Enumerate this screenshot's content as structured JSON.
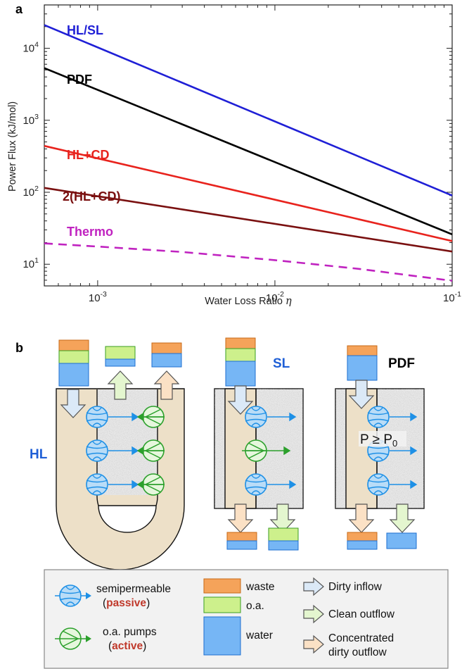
{
  "panel_a": {
    "letter": "a",
    "chart_data": {
      "type": "line",
      "xscale": "log",
      "yscale": "log",
      "xlim": [
        0.0005,
        0.1
      ],
      "ylim": [
        5,
        40000
      ],
      "xlabel_text": "Water Loss Ratio ",
      "xlabel_symbol": "η",
      "ylabel": "Power Flux (kJ/mol)",
      "grid": false,
      "legend": "inline labels",
      "x_ticks": [
        {
          "value": 0.001,
          "base": "10",
          "exp": "-3"
        },
        {
          "value": 0.01,
          "base": "10",
          "exp": "-2"
        },
        {
          "value": 0.1,
          "base": "10",
          "exp": "-1"
        }
      ],
      "y_ticks": [
        {
          "value": 10,
          "base": "10",
          "exp": "1"
        },
        {
          "value": 100,
          "base": "10",
          "exp": "2"
        },
        {
          "value": 1000,
          "base": "10",
          "exp": "3"
        },
        {
          "value": 10000,
          "base": "10",
          "exp": "4"
        }
      ],
      "series": [
        {
          "name": "HL/SL",
          "color": "#1f1fd6",
          "dash": "solid",
          "x": [
            0.0005,
            0.1
          ],
          "y": [
            21000,
            90
          ]
        },
        {
          "name": "PDF",
          "color": "#000000",
          "dash": "solid",
          "x": [
            0.0005,
            0.1
          ],
          "y": [
            5300,
            26
          ]
        },
        {
          "name": "HL+CD",
          "color": "#e8231d",
          "dash": "solid",
          "x": [
            0.0005,
            0.1
          ],
          "y": [
            440,
            21
          ]
        },
        {
          "name": "2(HL+CD)",
          "color": "#7a1010",
          "dash": "solid",
          "x": [
            0.0005,
            0.1
          ],
          "y": [
            115,
            15
          ]
        },
        {
          "name": "Thermo",
          "color": "#c023c0",
          "dash": "dashed",
          "x": [
            0.0005,
            0.001,
            0.003,
            0.01,
            0.03,
            0.1
          ],
          "y": [
            19.5,
            17.6,
            14.8,
            11.4,
            8.6,
            5.9
          ]
        }
      ]
    }
  },
  "panel_b": {
    "letter": "b",
    "labels": {
      "hl": "HL",
      "sl": "SL",
      "pdf": "PDF"
    },
    "pressure": {
      "main": "P ≥ P",
      "sub": "0"
    },
    "legend": {
      "semipermeable": "semipermeable",
      "passive": "passive",
      "pumps": "o.a. pumps",
      "active": "active",
      "waste": "waste",
      "oa": "o.a.",
      "water": "water",
      "dirty_inflow": "Dirty inflow",
      "clean_outflow": "Clean outflow",
      "concentrated_1": "Concentrated",
      "concentrated_2": "dirty outflow",
      "paren_open": "(",
      "paren_close": ")"
    },
    "colors": {
      "waste": "#f5a35a",
      "oa": "#cdf08c",
      "water": "#76b6f5",
      "channel": "#ede0c8",
      "semipermeable": "#1e90e6",
      "pump": "#2ca02c",
      "passive_text": "#c0392b",
      "active_text": "#c0392b",
      "blue_label": "#1f5fd6"
    }
  }
}
